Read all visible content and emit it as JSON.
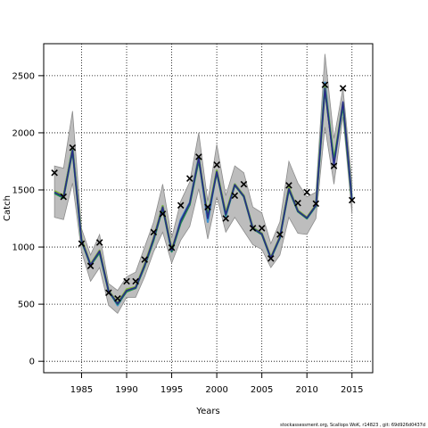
{
  "chart_data": {
    "type": "line",
    "xlabel": "Years",
    "ylabel": "Catch",
    "footnote": "stockassessment.org, Scallops WoK, r14823 , git: 69d926d0437d",
    "xlim": [
      1980.8,
      2017.3
    ],
    "ylim": [
      -100,
      2780
    ],
    "x_ticks": [
      1985,
      1990,
      1995,
      2000,
      2005,
      2010,
      2015
    ],
    "y_ticks": [
      0,
      500,
      1000,
      1500,
      2000,
      2500
    ],
    "grid": true,
    "colors": {
      "band": "#bdbdbd",
      "band_edge": "#8c8c8c",
      "series_a": "#3a8fd0",
      "series_b": "#7fb539",
      "series_c": "#1a8a4a",
      "series_d": "#2a2a8a",
      "observed": "#000000"
    },
    "x": [
      1982,
      1983,
      1984,
      1985,
      1986,
      1987,
      1988,
      1989,
      1990,
      1991,
      1992,
      1993,
      1994,
      1995,
      1996,
      1997,
      1998,
      1999,
      2000,
      2001,
      2002,
      2003,
      2004,
      2005,
      2006,
      2007,
      2008,
      2009,
      2010,
      2011,
      2012,
      2013,
      2014,
      2015
    ],
    "observed": [
      1650,
      1440,
      1870,
      1030,
      835,
      1040,
      600,
      550,
      700,
      700,
      890,
      1130,
      1290,
      995,
      1365,
      1600,
      1790,
      1350,
      1720,
      1250,
      1450,
      1550,
      1165,
      1165,
      900,
      1110,
      1540,
      1385,
      1480,
      1380,
      2420,
      1710,
      2390,
      1410
    ],
    "band_upper": [
      1710,
      1690,
      2190,
      1160,
      930,
      1110,
      680,
      620,
      740,
      780,
      1000,
      1220,
      1550,
      1080,
      1400,
      1570,
      2000,
      1400,
      1900,
      1450,
      1710,
      1650,
      1350,
      1300,
      1030,
      1220,
      1750,
      1560,
      1440,
      1480,
      2690,
      1950,
      2390,
      1570
    ],
    "band_lower": [
      1260,
      1240,
      1560,
      960,
      700,
      820,
      490,
      420,
      560,
      560,
      740,
      960,
      1130,
      860,
      1060,
      1180,
      1510,
      1070,
      1440,
      1130,
      1260,
      1140,
      1020,
      980,
      820,
      930,
      1260,
      1120,
      1110,
      1250,
      2050,
      1550,
      2140,
      1290
    ],
    "series": [
      {
        "values": [
          1480,
          1440,
          1870,
          1060,
          840,
          960,
          620,
          490,
          620,
          640,
          840,
          1070,
          1360,
          960,
          1240,
          1390,
          1790,
          1220,
          1670,
          1270,
          1550,
          1450,
          1170,
          1120,
          900,
          1080,
          1520,
          1320,
          1250,
          1360,
          2440,
          1730,
          2260,
          1410
        ]
      },
      {
        "values": [
          1490,
          1450,
          1860,
          1070,
          850,
          970,
          620,
          510,
          630,
          650,
          850,
          1080,
          1360,
          980,
          1220,
          1380,
          1780,
          1270,
          1670,
          1300,
          1550,
          1450,
          1170,
          1120,
          910,
          1090,
          1520,
          1320,
          1260,
          1370,
          2400,
          1760,
          2260,
          1410
        ]
      },
      {
        "values": [
          1470,
          1430,
          1840,
          1050,
          840,
          950,
          610,
          500,
          610,
          640,
          830,
          1060,
          1340,
          960,
          1210,
          1370,
          1760,
          1260,
          1650,
          1280,
          1540,
          1440,
          1160,
          1110,
          900,
          1080,
          1500,
          1310,
          1250,
          1360,
          2380,
          1750,
          2240,
          1410
        ]
      },
      {
        "values": [
          1480,
          1440,
          1850,
          1060,
          845,
          965,
          615,
          505,
          620,
          645,
          840,
          1075,
          1350,
          970,
          1230,
          1385,
          1780,
          1250,
          1660,
          1285,
          1545,
          1445,
          1165,
          1115,
          905,
          1085,
          1510,
          1315,
          1255,
          1365,
          2390,
          1720,
          2270,
          1410
        ]
      }
    ]
  }
}
